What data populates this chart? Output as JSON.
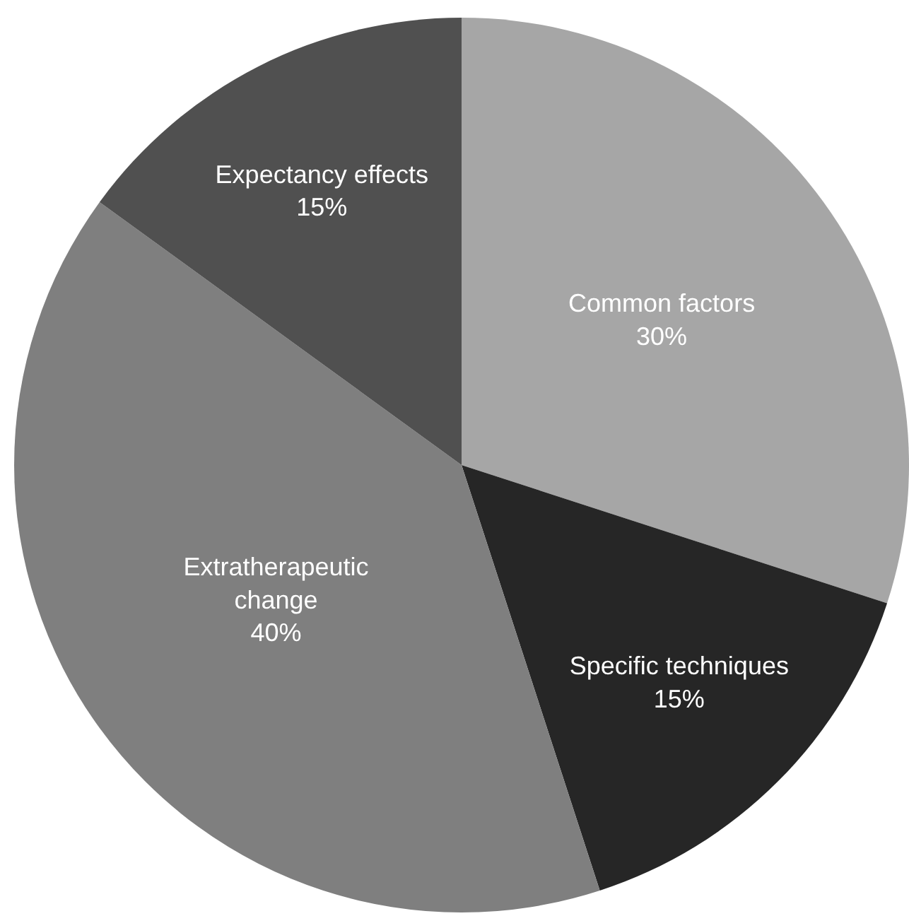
{
  "chart_data": {
    "type": "pie",
    "categories": [
      "Common factors",
      "Specific techniques",
      "Extratherapeutic\nchange",
      "Expectancy effects"
    ],
    "values": [
      30,
      15,
      40,
      15
    ],
    "value_labels": [
      "30%",
      "15%",
      "40%",
      "15%"
    ],
    "colors": [
      "#a6a6a6",
      "#262626",
      "#7f7f7f",
      "#505050"
    ],
    "legend": false
  }
}
